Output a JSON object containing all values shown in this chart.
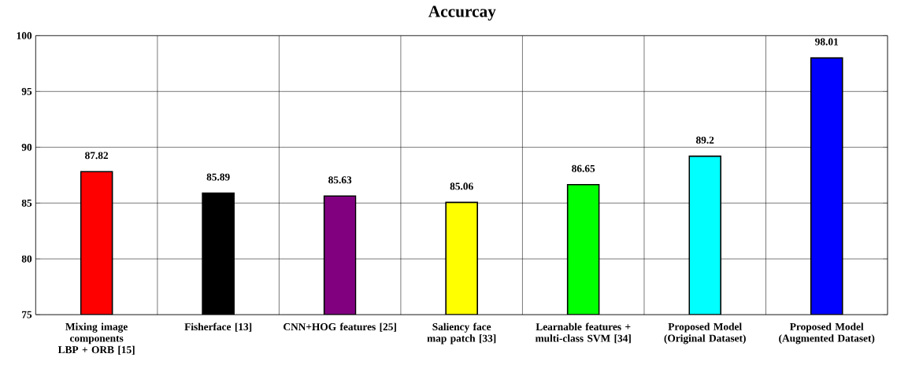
{
  "chart_data": {
    "type": "bar",
    "title": "Accurcay",
    "categories": [
      "Mixing image components LBP + ORB [15]",
      "Fisherface [13]",
      "CNN+HOG features [25]",
      "Saliency face map patch [33]",
      "Learnable features + multi-class SVM [34]",
      "Proposed Model (Original Dataset)",
      "Proposed Model (Augmented Dataset)"
    ],
    "values": [
      87.82,
      85.89,
      85.63,
      85.06,
      86.65,
      89.2,
      98.01
    ],
    "colors": [
      "#ff0000",
      "#000000",
      "#800080",
      "#ffff00",
      "#00ff00",
      "#00ffff",
      "#0000ff"
    ],
    "ylim": [
      75,
      100
    ],
    "yticks": [
      75,
      80,
      85,
      90,
      95,
      100
    ],
    "grid": true,
    "data_labels": true
  }
}
